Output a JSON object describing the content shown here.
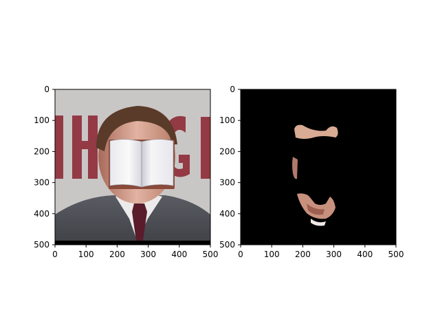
{
  "chart_data": [
    {
      "type": "image",
      "panel": "left",
      "title": "",
      "xlabel": "",
      "ylabel": "",
      "xlim": [
        0,
        500
      ],
      "ylim": [
        500,
        0
      ],
      "xticks": [
        0,
        100,
        200,
        300,
        400,
        500
      ],
      "yticks": [
        0,
        100,
        200,
        300,
        400,
        500
      ],
      "content": "photo-with-book-overlay"
    },
    {
      "type": "image",
      "panel": "right",
      "title": "",
      "xlabel": "",
      "ylabel": "",
      "xlim": [
        0,
        500
      ],
      "ylim": [
        500,
        0
      ],
      "xticks": [
        0,
        100,
        200,
        300,
        400,
        500
      ],
      "yticks": [
        0,
        100,
        200,
        300,
        400,
        500
      ],
      "content": "skin-mask-on-black"
    }
  ],
  "colors": {
    "background_photo": "#c9c6c6",
    "banner_text": "#8e2b36",
    "suit": "#4b4d54",
    "shirt": "#eceaea",
    "tie": "#5a1c2a",
    "skin": "#c89a86",
    "hair": "#5a3a28",
    "book_page": "#f2f2f4",
    "book_edge": "#8a4a3a",
    "mask_background": "#000000"
  }
}
